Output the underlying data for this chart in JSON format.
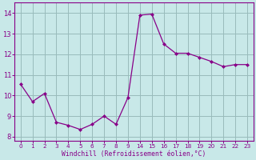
{
  "x_indices": [
    0,
    1,
    2,
    3,
    4,
    5,
    6,
    7,
    8,
    9,
    10,
    11,
    12,
    13,
    14,
    15,
    16,
    17,
    18,
    19
  ],
  "y": [
    10.55,
    9.7,
    10.1,
    8.7,
    8.55,
    8.35,
    8.6,
    9.0,
    8.6,
    9.9,
    13.9,
    13.95,
    12.5,
    12.05,
    12.05,
    11.85,
    11.65,
    11.4,
    11.5,
    11.5
  ],
  "xtick_positions": [
    0,
    1,
    2,
    3,
    4,
    5,
    6,
    7,
    8,
    9,
    10,
    11,
    12,
    13,
    14,
    15,
    16,
    17,
    18,
    19
  ],
  "xtick_labels": [
    "0",
    "1",
    "2",
    "3",
    "4",
    "5",
    "6",
    "7",
    "8",
    "9",
    "14",
    "15",
    "16",
    "17",
    "18",
    "19",
    "20",
    "21",
    "22",
    "23"
  ],
  "line_color": "#880088",
  "marker_color": "#880088",
  "bg_color": "#c8e8e8",
  "grid_color": "#99bbbb",
  "xlabel": "Windchill (Refroidissement éolien,°C)",
  "xlabel_color": "#880088",
  "tick_color": "#880088",
  "spine_color": "#880088",
  "ylim": [
    7.8,
    14.5
  ],
  "yticks": [
    8,
    9,
    10,
    11,
    12,
    13,
    14
  ],
  "xlim": [
    -0.5,
    19.5
  ]
}
